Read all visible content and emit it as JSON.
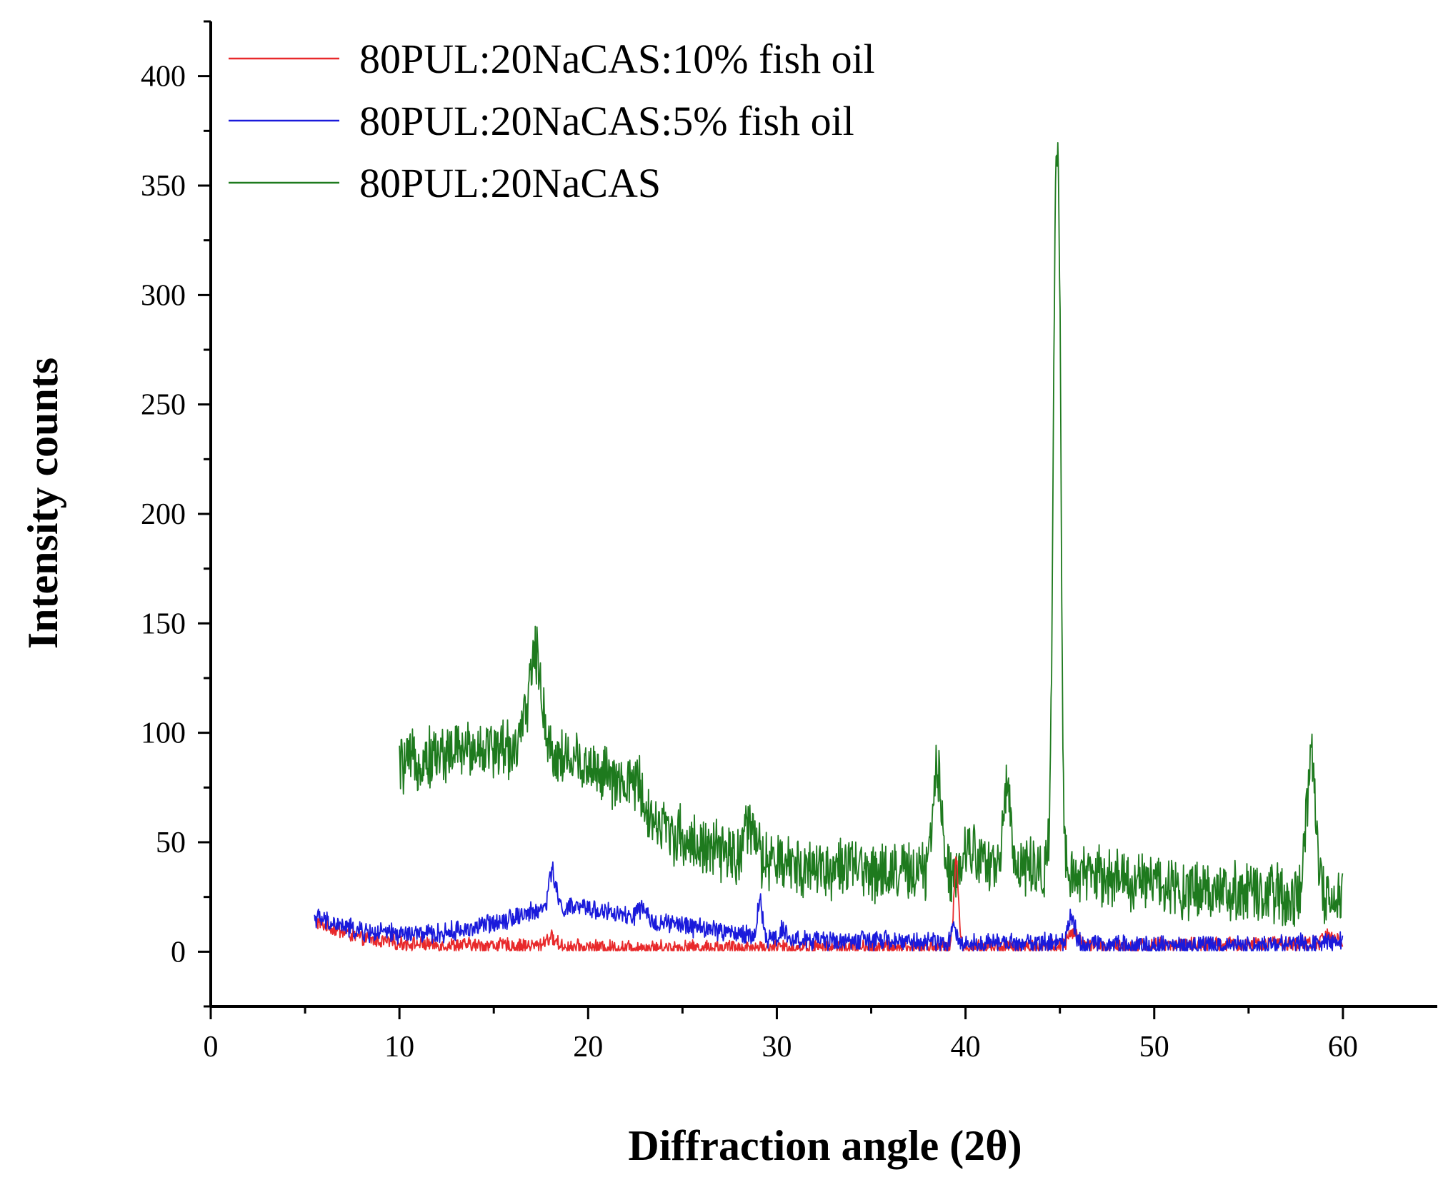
{
  "chart_data": {
    "type": "line",
    "title": "",
    "xlabel": "Diffraction angle (2θ)",
    "ylabel": "Intensity counts",
    "xlim": [
      0,
      65
    ],
    "ylim": [
      -25,
      425
    ],
    "xticks": [
      0,
      10,
      20,
      30,
      40,
      50,
      60
    ],
    "yticks": [
      0,
      50,
      100,
      150,
      200,
      250,
      300,
      350,
      400
    ],
    "x_minor_step": 5,
    "y_minor_step": 25,
    "grid": false,
    "legend_position": "top-left",
    "series": [
      {
        "name": "80PUL:20NaCAS:10% fish oil",
        "color": "#e8292b",
        "x_range": [
          5.5,
          60
        ],
        "baseline": [
          [
            5.5,
            14
          ],
          [
            6,
            12
          ],
          [
            7,
            9
          ],
          [
            8,
            6
          ],
          [
            9,
            5
          ],
          [
            10,
            4
          ],
          [
            12,
            3
          ],
          [
            15,
            3
          ],
          [
            20,
            2
          ],
          [
            30,
            2
          ],
          [
            40,
            2
          ],
          [
            50,
            3
          ],
          [
            60,
            4
          ]
        ],
        "noise": 3,
        "peaks": [
          {
            "x": 39.5,
            "height": 40,
            "width": 0.12
          },
          {
            "x": 45.7,
            "height": 6,
            "width": 0.25
          },
          {
            "x": 18.0,
            "height": 4,
            "width": 0.3
          },
          {
            "x": 59.3,
            "height": 4,
            "width": 0.3
          }
        ]
      },
      {
        "name": "80PUL:20NaCAS:5% fish oil",
        "color": "#1a1adb",
        "x_range": [
          5.5,
          60
        ],
        "baseline": [
          [
            5.5,
            16
          ],
          [
            6,
            14
          ],
          [
            8,
            9
          ],
          [
            10,
            8
          ],
          [
            12,
            8
          ],
          [
            14,
            11
          ],
          [
            16,
            16
          ],
          [
            18,
            20
          ],
          [
            20,
            20
          ],
          [
            22,
            16
          ],
          [
            24,
            13
          ],
          [
            26,
            11
          ],
          [
            28,
            8
          ],
          [
            30,
            6
          ],
          [
            32,
            5
          ],
          [
            35,
            5
          ],
          [
            40,
            4
          ],
          [
            45,
            4
          ],
          [
            50,
            3
          ],
          [
            55,
            3
          ],
          [
            60,
            5
          ]
        ],
        "noise": 4,
        "peaks": [
          {
            "x": 18.1,
            "height": 17,
            "width": 0.18
          },
          {
            "x": 29.1,
            "height": 17,
            "width": 0.12
          },
          {
            "x": 39.4,
            "height": 5,
            "width": 0.15
          },
          {
            "x": 45.6,
            "height": 12,
            "width": 0.2
          },
          {
            "x": 22.8,
            "height": 5,
            "width": 0.2
          },
          {
            "x": 30.3,
            "height": 5,
            "width": 0.15
          }
        ]
      },
      {
        "name": "80PUL:20NaCAS",
        "color": "#1e7a1e",
        "x_range": [
          10,
          60
        ],
        "baseline": [
          [
            10,
            85
          ],
          [
            12,
            90
          ],
          [
            14,
            93
          ],
          [
            16,
            93
          ],
          [
            17,
            95
          ],
          [
            18,
            90
          ],
          [
            19,
            88
          ],
          [
            20,
            85
          ],
          [
            21,
            80
          ],
          [
            22,
            72
          ],
          [
            23,
            62
          ],
          [
            24,
            57
          ],
          [
            25,
            52
          ],
          [
            26,
            48
          ],
          [
            27,
            45
          ],
          [
            28,
            43
          ],
          [
            29,
            41
          ],
          [
            30,
            40
          ],
          [
            32,
            39
          ],
          [
            35,
            37
          ],
          [
            38,
            36
          ],
          [
            40,
            38
          ],
          [
            42,
            39
          ],
          [
            44,
            38
          ],
          [
            46,
            36
          ],
          [
            48,
            33
          ],
          [
            50,
            31
          ],
          [
            52,
            29
          ],
          [
            54,
            27
          ],
          [
            56,
            26
          ],
          [
            58,
            24
          ],
          [
            60,
            27
          ]
        ],
        "noise": 12,
        "peaks": [
          {
            "x": 17.2,
            "height": 42,
            "width": 0.35
          },
          {
            "x": 22.6,
            "height": 12,
            "width": 0.35
          },
          {
            "x": 28.6,
            "height": 15,
            "width": 0.3
          },
          {
            "x": 38.5,
            "height": 48,
            "width": 0.22
          },
          {
            "x": 40.3,
            "height": 12,
            "width": 0.3
          },
          {
            "x": 42.2,
            "height": 40,
            "width": 0.18
          },
          {
            "x": 44.8,
            "height": 300,
            "width": 0.16
          },
          {
            "x": 45.0,
            "height": 120,
            "width": 0.1
          },
          {
            "x": 58.3,
            "height": 62,
            "width": 0.25
          }
        ]
      }
    ]
  }
}
